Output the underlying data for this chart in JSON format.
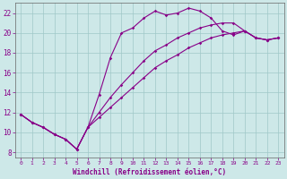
{
  "title": "",
  "xlabel": "Windchill (Refroidissement éolien,°C)",
  "bg_color": "#cde8e8",
  "grid_color": "#a0c8c8",
  "line_color": "#880088",
  "spine_color": "#666666",
  "xlim": [
    -0.5,
    23.5
  ],
  "ylim": [
    7.5,
    23.0
  ],
  "xticks": [
    0,
    1,
    2,
    3,
    4,
    5,
    6,
    7,
    8,
    9,
    10,
    11,
    12,
    13,
    14,
    15,
    16,
    17,
    18,
    19,
    20,
    21,
    22,
    23
  ],
  "yticks": [
    8,
    10,
    12,
    14,
    16,
    18,
    20,
    22
  ],
  "series": [
    {
      "x": [
        0,
        1,
        2,
        3,
        4,
        5,
        6,
        7,
        8,
        9,
        10,
        11,
        12,
        13,
        14,
        15,
        16,
        17,
        18,
        19,
        20,
        21,
        22,
        23
      ],
      "y": [
        11.8,
        11.0,
        10.5,
        9.8,
        9.3,
        8.3,
        10.5,
        13.8,
        17.5,
        20.0,
        20.5,
        21.5,
        22.2,
        21.8,
        22.0,
        22.5,
        22.2,
        21.5,
        20.2,
        19.8,
        20.2,
        19.5,
        19.3,
        19.5
      ]
    },
    {
      "x": [
        0,
        1,
        2,
        3,
        4,
        5,
        6,
        7,
        8,
        9,
        10,
        11,
        12,
        13,
        14,
        15,
        16,
        17,
        18,
        19,
        20,
        21,
        22,
        23
      ],
      "y": [
        11.8,
        11.0,
        10.5,
        9.8,
        9.3,
        8.3,
        10.5,
        12.0,
        13.5,
        14.8,
        16.0,
        17.2,
        18.2,
        18.8,
        19.5,
        20.0,
        20.5,
        20.8,
        21.0,
        21.0,
        20.2,
        19.5,
        19.3,
        19.5
      ]
    },
    {
      "x": [
        0,
        1,
        2,
        3,
        4,
        5,
        6,
        7,
        8,
        9,
        10,
        11,
        12,
        13,
        14,
        15,
        16,
        17,
        18,
        19,
        20,
        21,
        22,
        23
      ],
      "y": [
        11.8,
        11.0,
        10.5,
        9.8,
        9.3,
        8.3,
        10.5,
        11.5,
        12.5,
        13.5,
        14.5,
        15.5,
        16.5,
        17.2,
        17.8,
        18.5,
        19.0,
        19.5,
        19.8,
        20.0,
        20.2,
        19.5,
        19.3,
        19.5
      ]
    }
  ]
}
